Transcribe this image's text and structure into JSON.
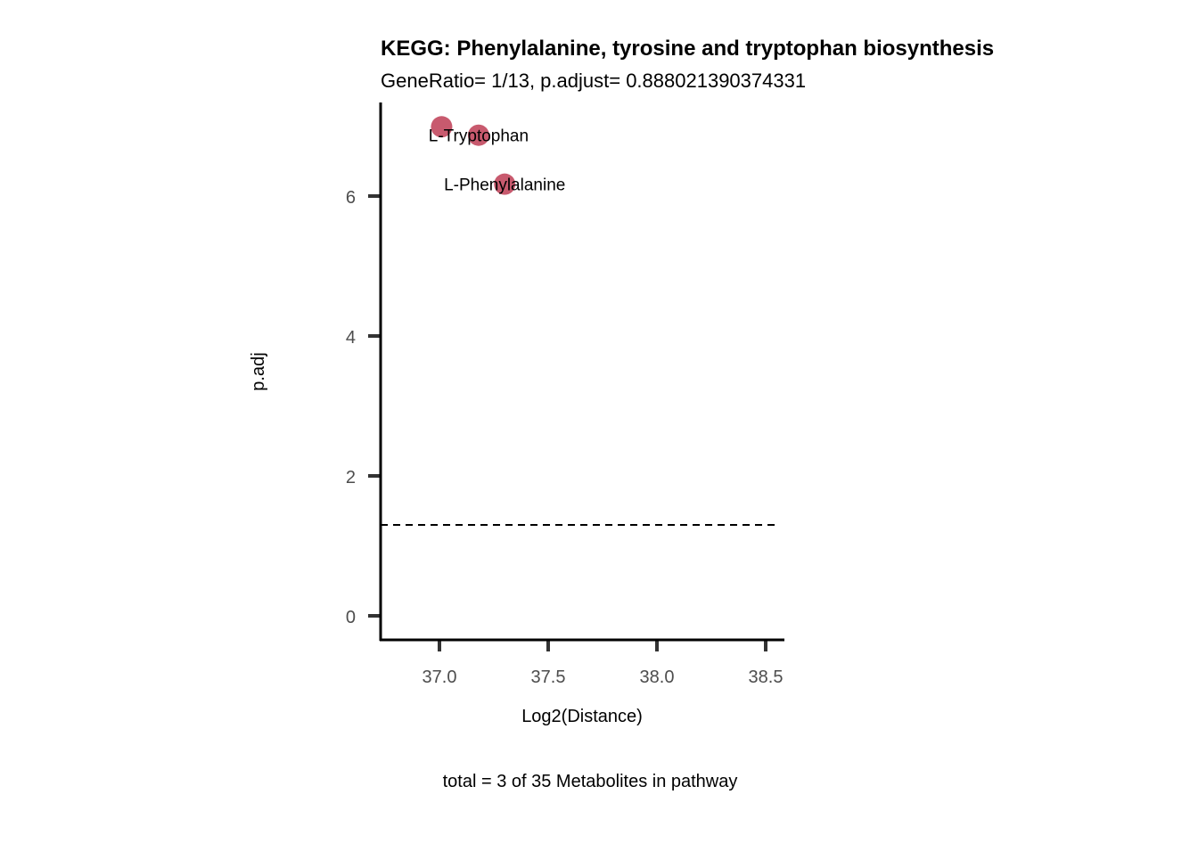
{
  "chart_data": {
    "type": "scatter",
    "title": "KEGG: Phenylalanine, tyrosine and tryptophan biosynthesis",
    "subtitle": "GeneRatio= 1/13, p.adjust= 0.888021390374331",
    "xlabel": "Log2(Distance)",
    "ylabel": "p.adj",
    "caption": "total = 3 of 35 Metabolites in pathway",
    "xlim": [
      36.73,
      38.58
    ],
    "ylim": [
      -0.35,
      7.3
    ],
    "x_ticks": [
      37.0,
      37.5,
      38.0,
      38.5
    ],
    "x_tick_labels": [
      "37.0",
      "37.5",
      "38.0",
      "38.5"
    ],
    "y_ticks": [
      0,
      2,
      4,
      6
    ],
    "y_tick_labels": [
      "0",
      "2",
      "4",
      "6"
    ],
    "threshold_line": 1.3,
    "point_color": "#C85A6E",
    "points": [
      {
        "x": 37.01,
        "y": 6.99,
        "label": ""
      },
      {
        "x": 37.18,
        "y": 6.87,
        "label": "L-Tryptophan"
      },
      {
        "x": 37.3,
        "y": 6.17,
        "label": "L-Phenylalanine"
      }
    ],
    "grid": false,
    "legend": "none"
  }
}
